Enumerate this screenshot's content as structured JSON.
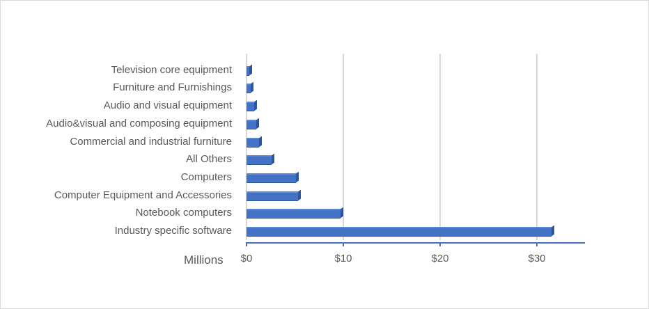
{
  "chart_data": {
    "type": "bar",
    "orientation": "horizontal",
    "title": "",
    "xlabel": "Millions",
    "ylabel": "",
    "categories": [
      "Industry specific software",
      "Notebook computers",
      "Computer Equipment and Accessories",
      "Computers",
      "All Others",
      "Commercial and industrial furniture",
      "Audio&visual and composing equipment",
      "Audio and visual equipment",
      "Furniture and Furnishings",
      "Television core equipment"
    ],
    "values": [
      31.8,
      10.0,
      5.6,
      5.4,
      2.9,
      1.6,
      1.3,
      1.1,
      0.7,
      0.6
    ],
    "xticks": [
      "$0",
      "$10",
      "$20",
      "$30"
    ],
    "xlim": [
      0,
      35
    ],
    "grid": true,
    "legend": "none",
    "bar_color": "#4472c4"
  },
  "axis": {
    "unit_label": "Millions",
    "ticks": [
      {
        "label": "$0",
        "value": 0
      },
      {
        "label": "$10",
        "value": 10
      },
      {
        "label": "$20",
        "value": 20
      },
      {
        "label": "$30",
        "value": 30
      }
    ]
  }
}
